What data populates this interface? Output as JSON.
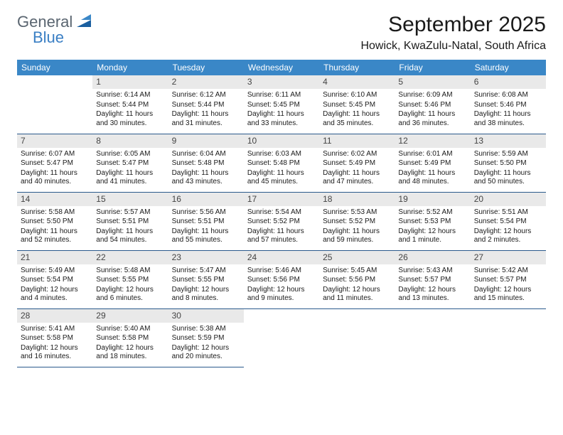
{
  "brand": {
    "part1": "General",
    "part2": "Blue"
  },
  "title": "September 2025",
  "location": "Howick, KwaZulu-Natal, South Africa",
  "colors": {
    "header_bg": "#3a87c7",
    "header_text": "#ffffff",
    "daynum_bg": "#e9e9e9",
    "row_border": "#2b5a8c",
    "logo_gray": "#5a6570",
    "logo_blue": "#3a7fc4"
  },
  "fonts": {
    "title_size": 30,
    "location_size": 16,
    "dayheader_size": 12,
    "daynum_size": 12,
    "cell_size": 10
  },
  "dayHeaders": [
    "Sunday",
    "Monday",
    "Tuesday",
    "Wednesday",
    "Thursday",
    "Friday",
    "Saturday"
  ],
  "weeks": [
    [
      {
        "blank": true
      },
      {
        "n": "1",
        "sunrise": "Sunrise: 6:14 AM",
        "sunset": "Sunset: 5:44 PM",
        "daylight": "Daylight: 11 hours and 30 minutes."
      },
      {
        "n": "2",
        "sunrise": "Sunrise: 6:12 AM",
        "sunset": "Sunset: 5:44 PM",
        "daylight": "Daylight: 11 hours and 31 minutes."
      },
      {
        "n": "3",
        "sunrise": "Sunrise: 6:11 AM",
        "sunset": "Sunset: 5:45 PM",
        "daylight": "Daylight: 11 hours and 33 minutes."
      },
      {
        "n": "4",
        "sunrise": "Sunrise: 6:10 AM",
        "sunset": "Sunset: 5:45 PM",
        "daylight": "Daylight: 11 hours and 35 minutes."
      },
      {
        "n": "5",
        "sunrise": "Sunrise: 6:09 AM",
        "sunset": "Sunset: 5:46 PM",
        "daylight": "Daylight: 11 hours and 36 minutes."
      },
      {
        "n": "6",
        "sunrise": "Sunrise: 6:08 AM",
        "sunset": "Sunset: 5:46 PM",
        "daylight": "Daylight: 11 hours and 38 minutes."
      }
    ],
    [
      {
        "n": "7",
        "sunrise": "Sunrise: 6:07 AM",
        "sunset": "Sunset: 5:47 PM",
        "daylight": "Daylight: 11 hours and 40 minutes."
      },
      {
        "n": "8",
        "sunrise": "Sunrise: 6:05 AM",
        "sunset": "Sunset: 5:47 PM",
        "daylight": "Daylight: 11 hours and 41 minutes."
      },
      {
        "n": "9",
        "sunrise": "Sunrise: 6:04 AM",
        "sunset": "Sunset: 5:48 PM",
        "daylight": "Daylight: 11 hours and 43 minutes."
      },
      {
        "n": "10",
        "sunrise": "Sunrise: 6:03 AM",
        "sunset": "Sunset: 5:48 PM",
        "daylight": "Daylight: 11 hours and 45 minutes."
      },
      {
        "n": "11",
        "sunrise": "Sunrise: 6:02 AM",
        "sunset": "Sunset: 5:49 PM",
        "daylight": "Daylight: 11 hours and 47 minutes."
      },
      {
        "n": "12",
        "sunrise": "Sunrise: 6:01 AM",
        "sunset": "Sunset: 5:49 PM",
        "daylight": "Daylight: 11 hours and 48 minutes."
      },
      {
        "n": "13",
        "sunrise": "Sunrise: 5:59 AM",
        "sunset": "Sunset: 5:50 PM",
        "daylight": "Daylight: 11 hours and 50 minutes."
      }
    ],
    [
      {
        "n": "14",
        "sunrise": "Sunrise: 5:58 AM",
        "sunset": "Sunset: 5:50 PM",
        "daylight": "Daylight: 11 hours and 52 minutes."
      },
      {
        "n": "15",
        "sunrise": "Sunrise: 5:57 AM",
        "sunset": "Sunset: 5:51 PM",
        "daylight": "Daylight: 11 hours and 54 minutes."
      },
      {
        "n": "16",
        "sunrise": "Sunrise: 5:56 AM",
        "sunset": "Sunset: 5:51 PM",
        "daylight": "Daylight: 11 hours and 55 minutes."
      },
      {
        "n": "17",
        "sunrise": "Sunrise: 5:54 AM",
        "sunset": "Sunset: 5:52 PM",
        "daylight": "Daylight: 11 hours and 57 minutes."
      },
      {
        "n": "18",
        "sunrise": "Sunrise: 5:53 AM",
        "sunset": "Sunset: 5:52 PM",
        "daylight": "Daylight: 11 hours and 59 minutes."
      },
      {
        "n": "19",
        "sunrise": "Sunrise: 5:52 AM",
        "sunset": "Sunset: 5:53 PM",
        "daylight": "Daylight: 12 hours and 1 minute."
      },
      {
        "n": "20",
        "sunrise": "Sunrise: 5:51 AM",
        "sunset": "Sunset: 5:54 PM",
        "daylight": "Daylight: 12 hours and 2 minutes."
      }
    ],
    [
      {
        "n": "21",
        "sunrise": "Sunrise: 5:49 AM",
        "sunset": "Sunset: 5:54 PM",
        "daylight": "Daylight: 12 hours and 4 minutes."
      },
      {
        "n": "22",
        "sunrise": "Sunrise: 5:48 AM",
        "sunset": "Sunset: 5:55 PM",
        "daylight": "Daylight: 12 hours and 6 minutes."
      },
      {
        "n": "23",
        "sunrise": "Sunrise: 5:47 AM",
        "sunset": "Sunset: 5:55 PM",
        "daylight": "Daylight: 12 hours and 8 minutes."
      },
      {
        "n": "24",
        "sunrise": "Sunrise: 5:46 AM",
        "sunset": "Sunset: 5:56 PM",
        "daylight": "Daylight: 12 hours and 9 minutes."
      },
      {
        "n": "25",
        "sunrise": "Sunrise: 5:45 AM",
        "sunset": "Sunset: 5:56 PM",
        "daylight": "Daylight: 12 hours and 11 minutes."
      },
      {
        "n": "26",
        "sunrise": "Sunrise: 5:43 AM",
        "sunset": "Sunset: 5:57 PM",
        "daylight": "Daylight: 12 hours and 13 minutes."
      },
      {
        "n": "27",
        "sunrise": "Sunrise: 5:42 AM",
        "sunset": "Sunset: 5:57 PM",
        "daylight": "Daylight: 12 hours and 15 minutes."
      }
    ],
    [
      {
        "n": "28",
        "sunrise": "Sunrise: 5:41 AM",
        "sunset": "Sunset: 5:58 PM",
        "daylight": "Daylight: 12 hours and 16 minutes."
      },
      {
        "n": "29",
        "sunrise": "Sunrise: 5:40 AM",
        "sunset": "Sunset: 5:58 PM",
        "daylight": "Daylight: 12 hours and 18 minutes."
      },
      {
        "n": "30",
        "sunrise": "Sunrise: 5:38 AM",
        "sunset": "Sunset: 5:59 PM",
        "daylight": "Daylight: 12 hours and 20 minutes."
      },
      {
        "blank": true
      },
      {
        "blank": true
      },
      {
        "blank": true
      },
      {
        "blank": true
      }
    ]
  ]
}
